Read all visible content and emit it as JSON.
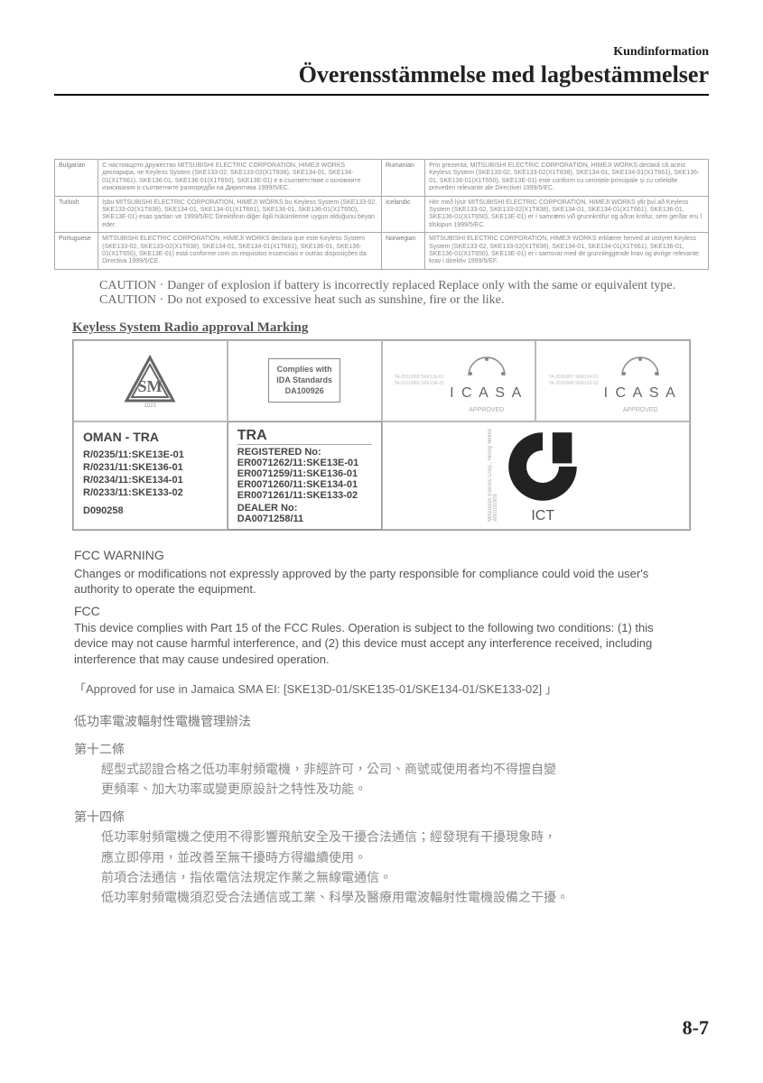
{
  "header": {
    "subhead": "Kundinformation",
    "title": "Överensstämmelse med lagbestämmelser"
  },
  "compliance_rows": [
    {
      "left_lang": "Bulgarian",
      "left_text": "С настоящото дружество MITSUBISHI ELECTRIC CORPORATION, HIMEJI WORKS декларира, че Keyless System (SKE133-02, SKE133-02(X1T838), SKE134-01, SKE134-01(X1T661), SKE136-01, SKE136-01(X1T650), SKE13E-01) е в съответствие с основните изисквания и съответните разпоредби на Директива 1999/5/EC.",
      "right_lang": "Rumanian",
      "right_text": "Prin prezenta, MITSUBISHI ELECTRIC CORPORATION, HIMEJI WORKS declară că acest Keyless System (SKE133-02, SKE133-02(X1T838), SKE134-01, SKE134-01(X1T661), SKE136-01, SKE136-01(X1T650), SKE13E-01) este conform cu cerințele principale și cu celelalte prevederi relevante ale Directivei 1999/5/EC."
    },
    {
      "left_lang": "Turkish",
      "left_text": "İşbu MITSUBISHI ELECTRIC CORPORATION, HIMEJI WORKS bu Keyless System (SKE133-02, SKE133-02(X1T838), SKE134-01, SKE134-01(X1T661), SKE136-01, SKE136-01(X1T650), SKE13E-01) esas şartları ve 1999/5/EC Direktifinin diğer ilgili hükümlerine uygun olduğunu beyan eder.",
      "right_lang": "Icelandic",
      "right_text": "Hér með lýsir MITSUBISHI ELECTRIC CORPORATION, HIMEJI WORKS yfir því að Keyless System (SKE133-02, SKE133-02(X1T838), SKE134-01, SKE134-01(X1T661), SKE136-01, SKE136-01(X1T650), SKE13E-01) er í samræmi við grunnkröfur og aðrar kröfur, sem gerðar eru í tilskipun 1999/5/EC."
    },
    {
      "left_lang": "Portuguese",
      "left_text": "MITSUBISHI ELECTRIC CORPORATION, HIMEJI WORKS declara que este Keyless System (SKE133-02, SKE133-02(X1T838), SKE134-01, SKE134-01(X1T661), SKE136-01, SKE136-01(X1T650), SKE13E-01) está conforme com os requisitos essenciais e outras disposições da Directiva 1999/5/CE.",
      "right_lang": "Norwegian",
      "right_text": "MITSUBISHI ELECTRIC CORPORATION, HIMEJI WORKS erklærer herved at utstyret Keyless System (SKE133-02, SKE133-02(X1T838), SKE134-01, SKE134-01(X1T661), SKE136-01, SKE136-01(X1T650), SKE13E-01) er i samsvar med de grunnleggende krav og øvrige relevante krav i direktiv 1999/5/EF."
    }
  ],
  "caution": {
    "label": "CAUTION ·",
    "line1": "Danger of explosion if battery is incorrectly replaced Replace only with the same or equivalent type.",
    "line2": "Do not exposed to excessive heat such as sunshine, fire or the like."
  },
  "radio_marking_heading": "Keyless System Radio approval Marking",
  "ida": {
    "line1": "Complies with",
    "line2": "IDA Standards",
    "line3": "DA100926"
  },
  "icasa": {
    "brand": "I C A S A",
    "approved": "APPROVED",
    "side_a": "TA-2011/868   SKE136-01\nTA-2011/868   SKE13E-01",
    "side_b": "TA-2011/867   SKE134-01\nTA-2011/868   SKE133-02"
  },
  "oman": {
    "title": "OMAN - TRA",
    "lines": [
      "R/0235/11:SKE13E-01",
      "R/0231/11:SKE136-01",
      "R/0234/11:SKE134-01",
      "R/0233/11:SKE133-02"
    ],
    "d": "D090258"
  },
  "tra": {
    "title": "TRA",
    "reg_label": "REGISTERED No:",
    "lines": [
      "ER0071262/11:SKE13E-01",
      "ER0071259/11:SKE136-01",
      "ER0071260/11:SKE134-01",
      "ER0071261/11:SKE133-02"
    ],
    "dealer_label": "DEALER No:",
    "dealer_no": "DA0071258/11"
  },
  "ict": {
    "side": "Mitsubishi Electric Corp., Himeji Works\nA00100309",
    "label": "ICT"
  },
  "fcc": {
    "warn_heading": "FCC WARNING",
    "warn_body": "Changes or modifications not expressly approved by the party responsible for compliance could void the user's authority to operate the equipment.",
    "heading": "FCC",
    "body": "This device complies with Part 15 of the FCC Rules. Operation is subject to the following two conditions: (1) this device may not cause harmful interference, and (2) this device must accept any interference received, including interference that may cause undesired operation."
  },
  "jamaica": "「Approved for use in Jamaica SMA EI: [SKE13D-01/SKE135-01/SKE134-01/SKE133-02] 」",
  "cjk": {
    "title": "低功率電波輻射性電機管理辦法",
    "art12_label": "第十二條",
    "art12_body": "經型式認證合格之低功率射頻電機，非經許可，公司、商號或使用者均不得擅自變\n更頻率、加大功率或變更原設計之特性及功能。",
    "art14_label": "第十四條",
    "art14_body": "低功率射頻電機之使用不得影響飛航安全及干擾合法通信；經發現有干擾現象時，\n應立即停用，並改善至無干擾時方得繼續使用。\n前項合法通信，指依電信法規定作業之無線電通信。\n低功率射頻電機須忍受合法通信或工業、科學及醫療用電波輻射性電機設備之干擾。"
  },
  "page_number": "8-7",
  "colors": {
    "text_main": "#222222",
    "text_faded": "#888888",
    "border": "#999999"
  }
}
